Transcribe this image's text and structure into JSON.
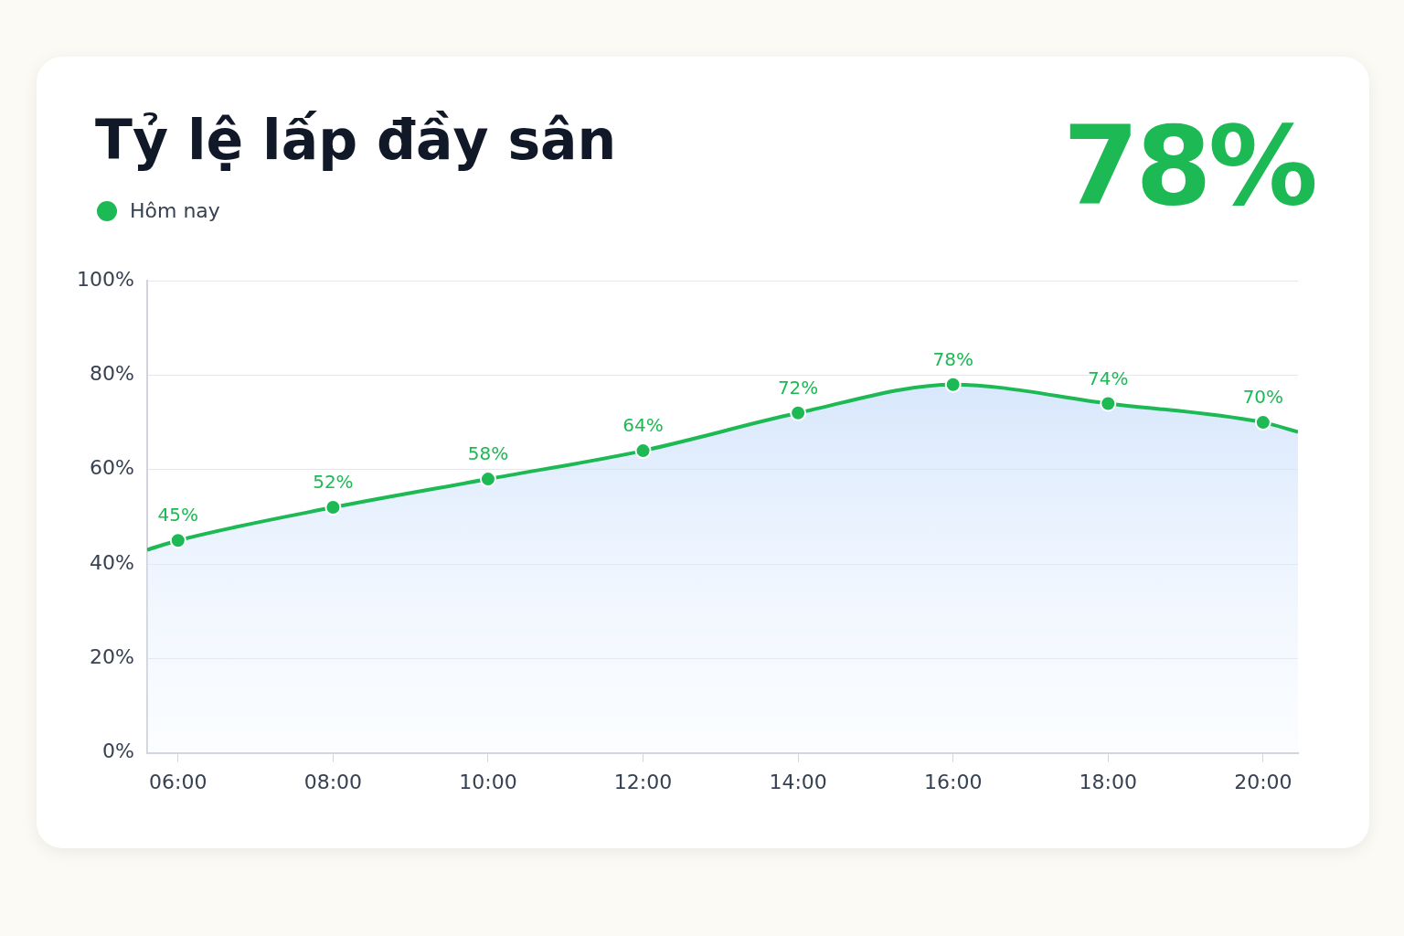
{
  "chart_data": {
    "type": "area",
    "title": "Tỷ lệ lấp đầy sân",
    "annotations": [
      "78%"
    ],
    "x": [
      5.6,
      6,
      8,
      10,
      12,
      14,
      16,
      18,
      20,
      20.45
    ],
    "series": [
      {
        "name": "Hôm nay",
        "color": "#1db954",
        "values": [
          43,
          45,
          52,
          58,
          64,
          72,
          78,
          74,
          70,
          68
        ],
        "value_labels": [
          null,
          "45%",
          "52%",
          "58%",
          "64%",
          "72%",
          "78%",
          "74%",
          "70%",
          null
        ]
      }
    ],
    "xlim": [
      5.6,
      20.45
    ],
    "xticks": [
      {
        "value": 6,
        "label": "06:00"
      },
      {
        "value": 8,
        "label": "08:00"
      },
      {
        "value": 10,
        "label": "10:00"
      },
      {
        "value": 12,
        "label": "12:00"
      },
      {
        "value": 14,
        "label": "14:00"
      },
      {
        "value": 16,
        "label": "16:00"
      },
      {
        "value": 18,
        "label": "18:00"
      },
      {
        "value": 20,
        "label": "20:00"
      }
    ],
    "ylim": [
      0,
      100
    ],
    "yticks": [
      {
        "value": 0,
        "label": "0%"
      },
      {
        "value": 20,
        "label": "20%"
      },
      {
        "value": 40,
        "label": "40%"
      },
      {
        "value": 60,
        "label": "60%"
      },
      {
        "value": 80,
        "label": "80%"
      },
      {
        "value": 100,
        "label": "100%"
      }
    ],
    "grid": "y",
    "legend": "top left",
    "marker": "circle",
    "line_style": "solid"
  }
}
